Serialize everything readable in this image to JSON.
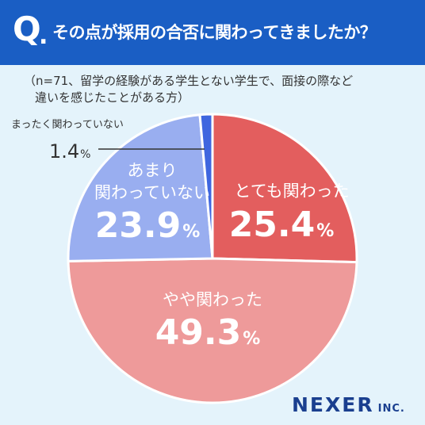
{
  "header": {
    "q_mark": "Q",
    "q_dot": ".",
    "question": "その点が採用の合否に関わってきましたか？",
    "bg_color": "#1a5ec4"
  },
  "note": {
    "line1": "（n=71、留学の経験がある学生とない学生で、面接の際など",
    "line2": "違いを感じたことがある方）"
  },
  "chart_data": {
    "type": "pie",
    "start": "top, clockwise",
    "slices": [
      {
        "label": "とても関わった",
        "value": 25.4,
        "color": "#e35e5e"
      },
      {
        "label": "やや関わった",
        "value": 49.3,
        "color": "#ee9a9a"
      },
      {
        "label": "あまり関わっていない",
        "value": 23.9,
        "color": "#99aef0"
      },
      {
        "label": "まったく関わっていない",
        "value": 1.4,
        "color": "#3f66df"
      }
    ],
    "unit": "%"
  },
  "labels": {
    "s0_line1": "とても関わった",
    "s0_value": "25.4",
    "s1_line1": "やや関わった",
    "s1_value": "49.3",
    "s2_line1": "あまり",
    "s2_line2": "関わっていない",
    "s2_value": "23.9",
    "s3_line1": "まったく関わっていない",
    "s3_value": "1.4",
    "unit": "%"
  },
  "brand": {
    "name": "NEXER",
    "suffix": "INC.",
    "color": "#1a3f8f"
  }
}
